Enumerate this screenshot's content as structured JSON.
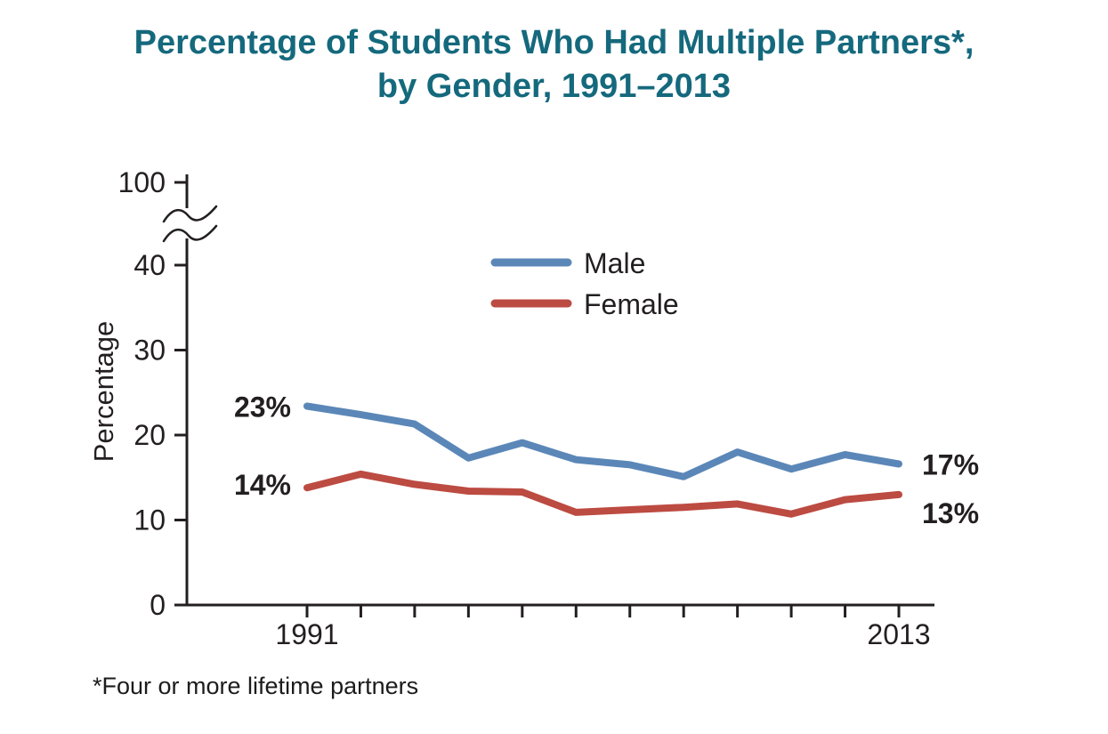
{
  "title": {
    "line1": "Percentage of Students Who Had Multiple Partners*,",
    "line2": "by Gender, 1991–2013"
  },
  "footnote": "*Four or more lifetime partners",
  "colors": {
    "title_teal": "#15697d",
    "male_blue": "#5b87b8",
    "female_red": "#bc4b42",
    "axis_black": "#231f20"
  },
  "chart_data": {
    "type": "line",
    "x": [
      1991,
      1993,
      1995,
      1997,
      1999,
      2001,
      2003,
      2005,
      2007,
      2009,
      2011,
      2013
    ],
    "x_tick_labels_visible": [
      "1991",
      "2013"
    ],
    "ylabel": "Percentage",
    "y_ticks": [
      0,
      10,
      20,
      30,
      40
    ],
    "y_axis_break_label": "100",
    "ylim": [
      0,
      45
    ],
    "axis_break": true,
    "grid": false,
    "legend_position": "top-center-inside",
    "series": [
      {
        "name": "Male",
        "color": "#5b87b8",
        "values": [
          23.4,
          22.4,
          21.3,
          17.3,
          19.1,
          17.1,
          16.5,
          15.1,
          18.0,
          16.0,
          17.7,
          16.6
        ],
        "start_label": "23%",
        "end_label": "17%"
      },
      {
        "name": "Female",
        "color": "#bc4b42",
        "values": [
          13.8,
          15.4,
          14.2,
          13.4,
          13.3,
          10.9,
          11.2,
          11.5,
          11.9,
          10.7,
          12.4,
          13.0
        ],
        "start_label": "14%",
        "end_label": "13%"
      }
    ]
  }
}
